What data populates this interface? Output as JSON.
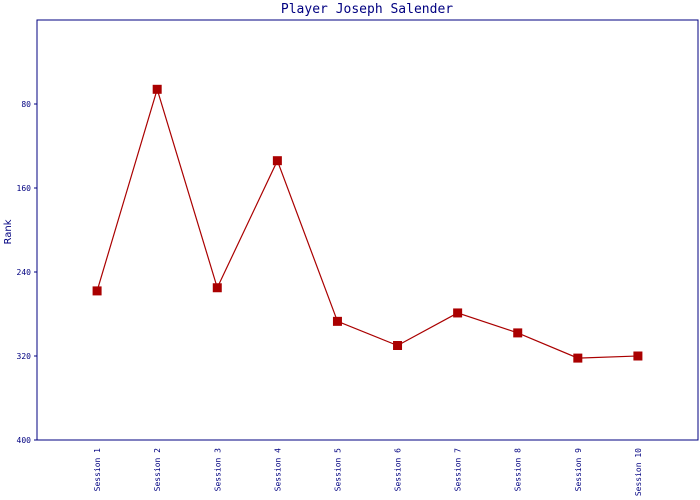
{
  "chart_data": {
    "type": "line",
    "title": "Player Joseph Salender",
    "y_label": "Rank",
    "categories": [
      "Session 1",
      "Session 2",
      "Session 3",
      "Session 4",
      "Session 5",
      "Session 6",
      "Session 7",
      "Session 8",
      "Session 9",
      "Session 10"
    ],
    "series": [
      {
        "name": "Rank",
        "color": "#aa0000",
        "values": [
          258,
          66,
          255,
          134,
          287,
          310,
          279,
          298,
          322,
          320
        ]
      }
    ],
    "ylim": [
      400,
      0
    ],
    "yticks": [
      80,
      160,
      240,
      320,
      400
    ],
    "grid": false
  }
}
